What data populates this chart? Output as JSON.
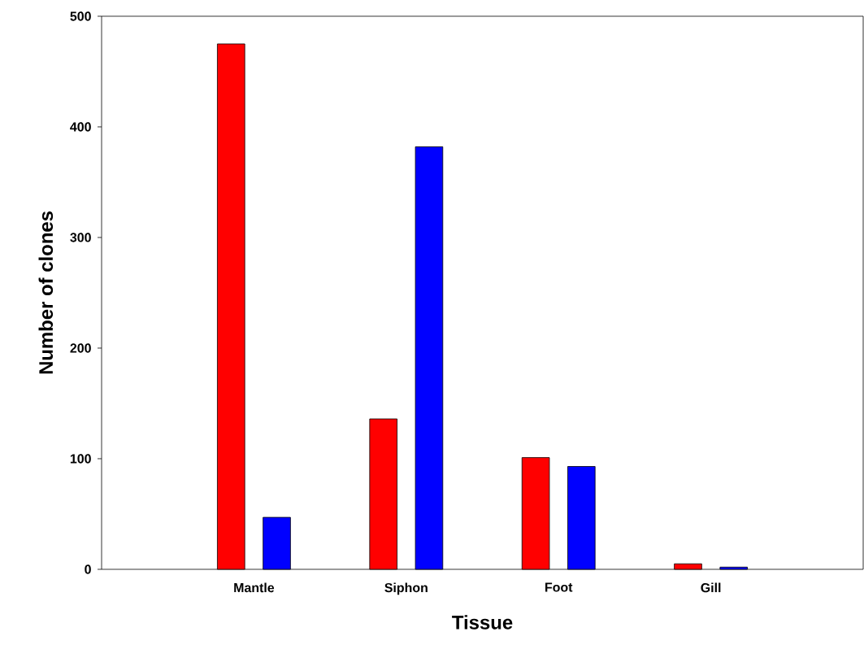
{
  "chart_data": {
    "type": "bar",
    "xlabel": "Tissue",
    "ylabel": "Number of clones",
    "categories": [
      "Mantle",
      "Siphon",
      "Foot",
      "Gill"
    ],
    "series": [
      {
        "color": "#ff0000",
        "values": [
          475,
          136,
          101,
          5
        ]
      },
      {
        "color": "#0000ff",
        "values": [
          47,
          382,
          93,
          2
        ]
      }
    ],
    "ylim": [
      0,
      500
    ],
    "yticks": [
      0,
      100,
      200,
      300,
      400,
      500
    ]
  }
}
